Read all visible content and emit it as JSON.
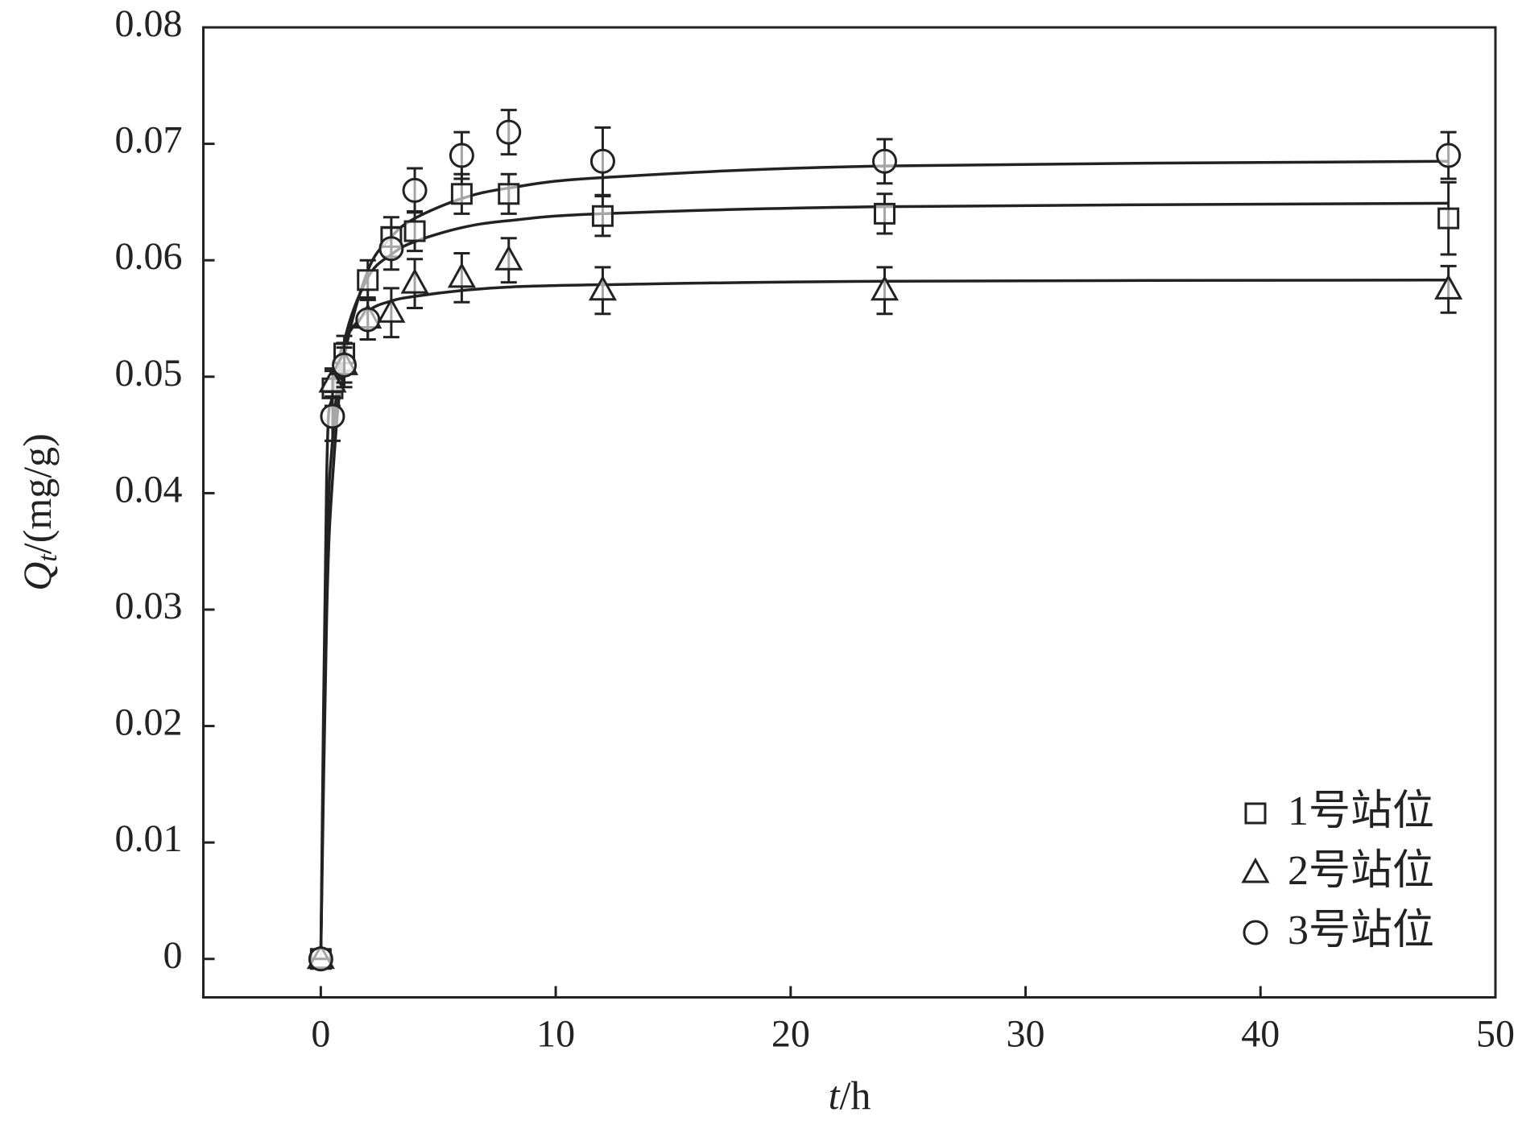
{
  "chart_data": {
    "type": "scatter",
    "xlabel": {
      "symbol": "t",
      "unit": "/h"
    },
    "ylabel": {
      "symbol": "Q",
      "subscript": "t",
      "unit": "/(mg/g)"
    },
    "xlim": [
      -5,
      50
    ],
    "xticks": [
      0,
      10,
      20,
      30,
      40,
      50
    ],
    "ylim": [
      -0.0033,
      0.08
    ],
    "yticks": [
      0,
      0.01,
      0.02,
      0.03,
      0.04,
      0.05,
      0.06,
      0.07,
      0.08
    ],
    "legend": "lower right",
    "color": "#222222",
    "x": [
      0,
      0.5,
      1,
      2,
      3,
      4,
      6,
      8,
      12,
      24,
      48
    ],
    "series": [
      {
        "name": "1号站位",
        "marker": "square",
        "values": [
          0,
          0.049,
          0.052,
          0.0583,
          0.062,
          0.0625,
          0.0657,
          0.0657,
          0.0638,
          0.064,
          0.0636
        ],
        "errors": [
          0,
          0.0015,
          0.0015,
          0.0017,
          0.0017,
          0.0017,
          0.0017,
          0.0017,
          0.0017,
          0.0017,
          0.0031
        ]
      },
      {
        "name": "2号站位",
        "marker": "triangle",
        "values": [
          0,
          0.0495,
          0.051,
          0.055,
          0.0555,
          0.058,
          0.0585,
          0.06,
          0.0574,
          0.0574,
          0.0575
        ],
        "errors": [
          0,
          0.0012,
          0.0015,
          0.0018,
          0.0021,
          0.0021,
          0.0021,
          0.0019,
          0.002,
          0.002,
          0.002
        ]
      },
      {
        "name": "3号站位",
        "marker": "circle",
        "values": [
          0,
          0.0466,
          0.051,
          0.0549,
          0.061,
          0.066,
          0.069,
          0.071,
          0.0685,
          0.0685,
          0.069
        ],
        "errors": [
          0,
          0.0021,
          0.0019,
          0.0017,
          0.0018,
          0.0019,
          0.002,
          0.0019,
          0.0029,
          0.0019,
          0.002
        ]
      }
    ],
    "fits": [
      {
        "x": [
          0,
          0.25,
          0.5,
          1,
          2,
          3,
          4,
          6,
          8,
          12,
          24,
          48
        ],
        "values": [
          0,
          0.0339,
          0.0446,
          0.053,
          0.0585,
          0.0605,
          0.0616,
          0.0628,
          0.0634,
          0.064,
          0.0646,
          0.0649
        ]
      },
      {
        "x": [
          0,
          0.25,
          0.5,
          1,
          2,
          3,
          4,
          6,
          8,
          12,
          24,
          48
        ],
        "values": [
          0,
          0.0415,
          0.0485,
          0.053,
          0.0556,
          0.0565,
          0.0569,
          0.0574,
          0.0577,
          0.0579,
          0.0582,
          0.0583
        ]
      },
      {
        "x": [
          0,
          0.25,
          0.5,
          1,
          2,
          3,
          4,
          6,
          8,
          12,
          24,
          48
        ],
        "values": [
          0,
          0.0294,
          0.0412,
          0.0516,
          0.0591,
          0.062,
          0.0636,
          0.0653,
          0.0662,
          0.0671,
          0.0681,
          0.0685
        ]
      }
    ]
  }
}
